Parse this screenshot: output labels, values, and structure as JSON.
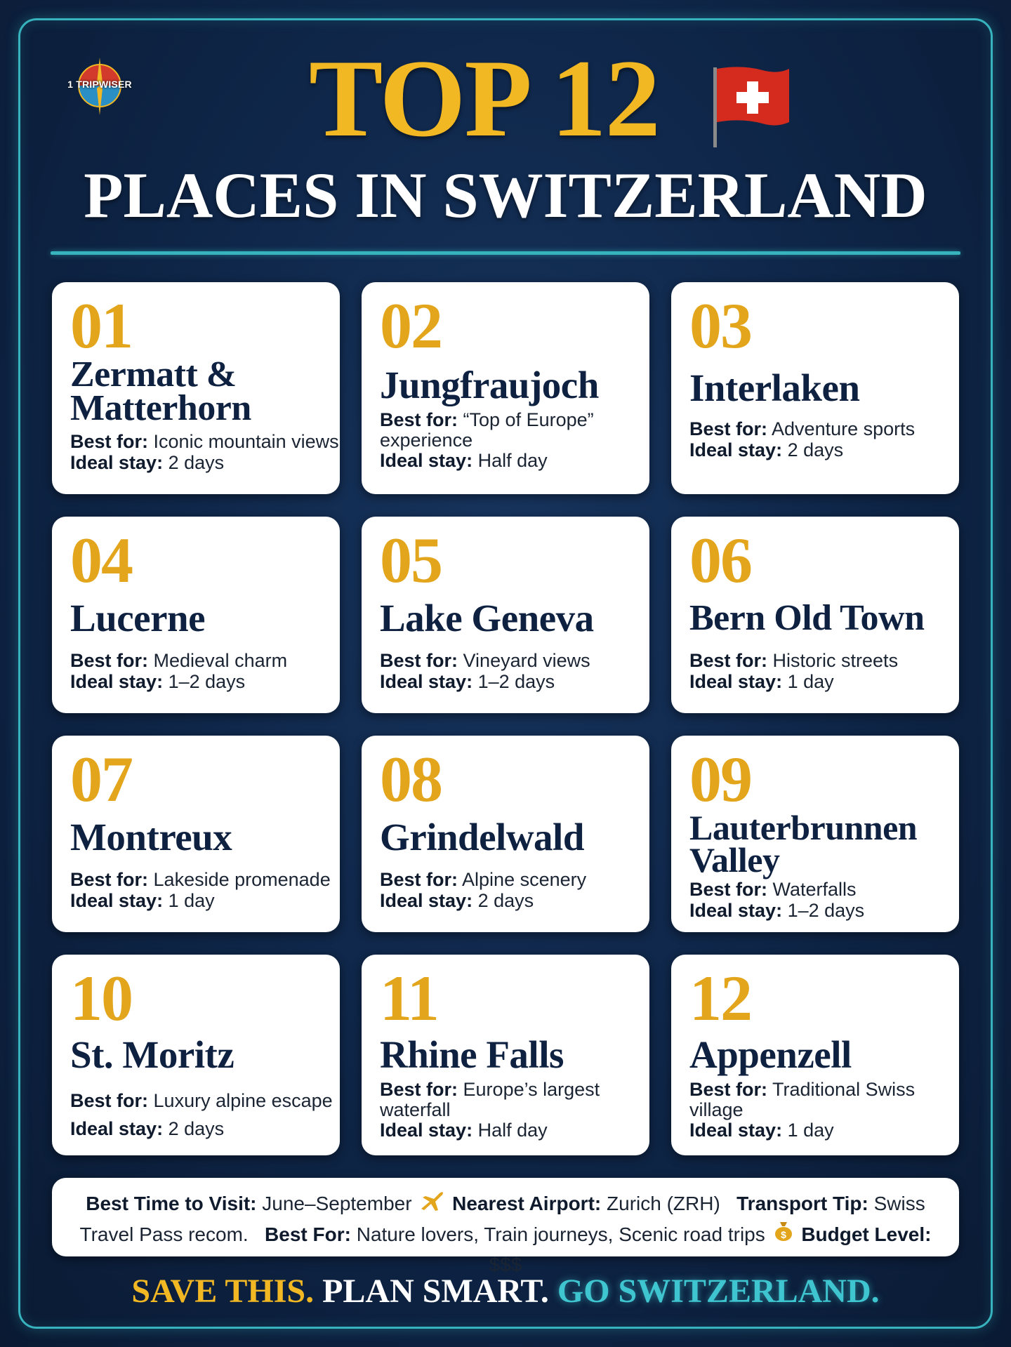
{
  "brand": {
    "logo_text": "1 TRIPWISER"
  },
  "header": {
    "title_top": "TOP 12",
    "title_bottom": "PLACES IN SWITZERLAND"
  },
  "labels": {
    "best_for": "Best for:",
    "ideal_stay": "Ideal stay:"
  },
  "places": [
    {
      "num": "01",
      "name_1": "Zermatt &",
      "name_2": "Matterhorn",
      "best_for": "Iconic mountain views",
      "ideal_stay": "2 days"
    },
    {
      "num": "02",
      "name_1": "Jungfraujoch",
      "best_for": "“Top of Europe” experience",
      "ideal_stay": "Half day"
    },
    {
      "num": "03",
      "name_1": "Interlaken",
      "best_for": "Adventure sports",
      "ideal_stay": "2 days"
    },
    {
      "num": "04",
      "name_1": "Lucerne",
      "best_for": "Medieval charm",
      "ideal_stay": "1–2 days"
    },
    {
      "num": "05",
      "name_1": "Lake Geneva",
      "best_for": "Vineyard views",
      "ideal_stay": "1–2 days"
    },
    {
      "num": "06",
      "name_1": "Bern Old Town",
      "best_for": "Historic streets",
      "ideal_stay": "1 day"
    },
    {
      "num": "07",
      "name_1": "Montreux",
      "best_for": "Lakeside promenade",
      "ideal_stay": "1 day"
    },
    {
      "num": "08",
      "name_1": "Grindelwald",
      "best_for": "Alpine scenery",
      "ideal_stay": "2 days"
    },
    {
      "num": "09",
      "name_1": "Lauterbrunnen",
      "name_2": "Valley",
      "best_for": "Waterfalls",
      "ideal_stay": "1–2 days"
    },
    {
      "num": "10",
      "name_1": "St. Moritz",
      "best_for": "Luxury alpine escape",
      "ideal_stay": "2 days"
    },
    {
      "num": "11",
      "name_1": "Rhine Falls",
      "best_for": "Europe’s largest waterfall",
      "ideal_stay": "Half day"
    },
    {
      "num": "12",
      "name_1": "Appenzell",
      "best_for": "Traditional Swiss village",
      "ideal_stay": "1 day"
    }
  ],
  "footer": {
    "best_time_label": "Best Time to Visit:",
    "best_time_value": "June–September",
    "airport_label": "Nearest Airport:",
    "airport_value": "Zurich (ZRH)",
    "transport_label": "Transport Tip:",
    "transport_value": "Swiss Travel Pass recom.",
    "best_for_label": "Best For:",
    "best_for_value": "Nature lovers, Train journeys, Scenic road trips",
    "budget_label": "Budget Level:",
    "budget_value": "$$$"
  },
  "tagline": {
    "part_1": "SAVE THIS.",
    "part_2": "PLAN SMART.",
    "part_3": "GO SWITZERLAND."
  },
  "colors": {
    "background": "#0f274a",
    "gold": "#f2b824",
    "teal": "#36b3bc",
    "card": "#ffffff",
    "navy_text": "#0f2140",
    "flag_red": "#d52b1e"
  },
  "icons": {
    "logo": "compass-logo-icon",
    "flag": "swiss-flag-icon",
    "airport": "airplane-icon",
    "budget": "money-bag-icon"
  }
}
